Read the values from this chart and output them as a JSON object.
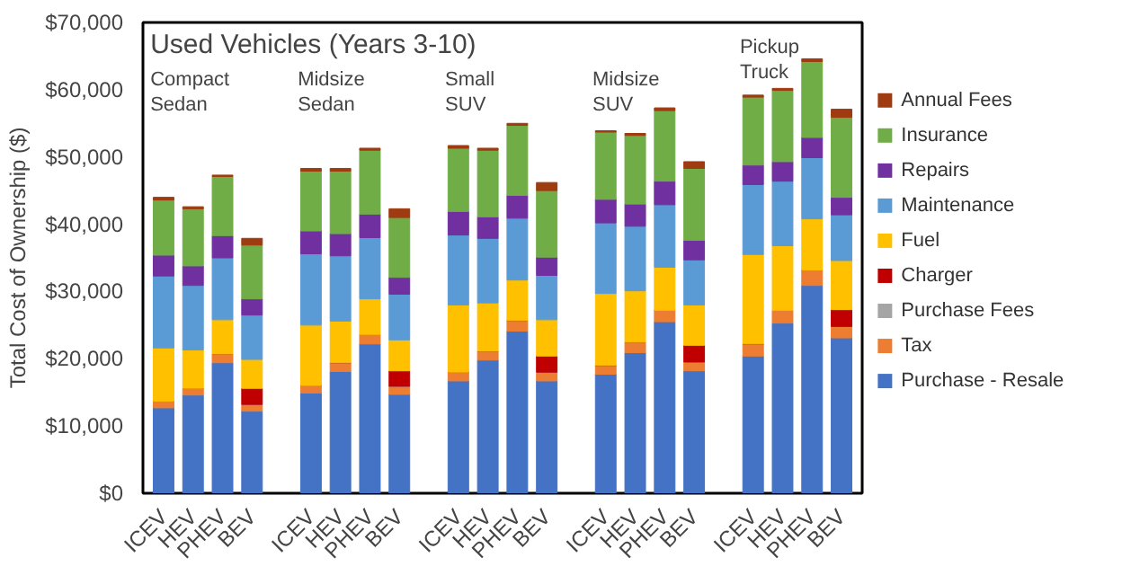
{
  "chart_data": {
    "type": "bar",
    "stacked": true,
    "title": "Used Vehicles (Years 3-10)",
    "ylabel": "Total Cost of Ownership ($)",
    "categories": [
      "ICEV",
      "HEV",
      "PHEV",
      "BEV",
      null,
      "ICEV",
      "HEV",
      "PHEV",
      "BEV",
      null,
      "ICEV",
      "HEV",
      "PHEV",
      "BEV",
      null,
      "ICEV",
      "HEV",
      "PHEV",
      "BEV",
      null,
      "ICEV",
      "HEV",
      "PHEV",
      "BEV"
    ],
    "annotations": [
      "Compact Sedan",
      "Midsize Sedan",
      "Small SUV",
      "Midsize SUV",
      "Pickup Truck"
    ],
    "ylim": [
      0,
      70000
    ],
    "yticks": [
      {
        "value": 0,
        "label": "$0"
      },
      {
        "value": 10000,
        "label": "$10,000"
      },
      {
        "value": 20000,
        "label": "$20,000"
      },
      {
        "value": 30000,
        "label": "$30,000"
      },
      {
        "value": 40000,
        "label": "$40,000"
      },
      {
        "value": 50000,
        "label": "$50,000"
      },
      {
        "value": 60000,
        "label": "$60,000"
      },
      {
        "value": 70000,
        "label": "$70,000"
      }
    ],
    "legend": "right",
    "series": [
      {
        "name": "Purchase - Resale",
        "color": "#4472c4",
        "values": [
          12700,
          14600,
          19400,
          12200,
          null,
          14900,
          18100,
          22200,
          14700,
          null,
          16700,
          19800,
          24100,
          16700,
          null,
          17700,
          20900,
          25500,
          18200,
          null,
          20400,
          25300,
          30900,
          23100
        ]
      },
      {
        "name": "Tax",
        "color": "#ed7d31",
        "values": [
          1000,
          1000,
          1300,
          1000,
          null,
          1100,
          1300,
          1400,
          1200,
          null,
          1300,
          1300,
          1600,
          1300,
          null,
          1300,
          1600,
          1700,
          1300,
          null,
          1800,
          1900,
          2300,
          1700
        ]
      },
      {
        "name": "Purchase Fees",
        "color": "#a5a5a5",
        "values": [
          0,
          0,
          0,
          0,
          null,
          0,
          0,
          0,
          0,
          null,
          0,
          0,
          0,
          0,
          null,
          0,
          0,
          0,
          0,
          null,
          0,
          0,
          0,
          0
        ]
      },
      {
        "name": "Charger",
        "color": "#c00000",
        "values": [
          0,
          0,
          0,
          2400,
          null,
          0,
          0,
          0,
          2300,
          null,
          0,
          0,
          0,
          2400,
          null,
          0,
          0,
          0,
          2500,
          null,
          0,
          0,
          0,
          2500
        ]
      },
      {
        "name": "Fuel",
        "color": "#ffc000",
        "values": [
          7900,
          5700,
          5100,
          4300,
          null,
          9000,
          6200,
          5300,
          4600,
          null,
          10000,
          7200,
          6000,
          5400,
          null,
          10700,
          7600,
          6400,
          6000,
          null,
          13300,
          9600,
          7600,
          7300
        ]
      },
      {
        "name": "Maintenance",
        "color": "#5b9bd5",
        "values": [
          10700,
          9600,
          9200,
          6600,
          null,
          10600,
          9700,
          9100,
          6800,
          null,
          10400,
          9600,
          9200,
          6600,
          null,
          10500,
          9600,
          9300,
          6700,
          null,
          10400,
          9600,
          9100,
          6800
        ]
      },
      {
        "name": "Repairs",
        "color": "#7030a0",
        "values": [
          3100,
          2900,
          3300,
          2400,
          null,
          3400,
          3300,
          3500,
          2500,
          null,
          3500,
          3200,
          3400,
          2700,
          null,
          3500,
          3300,
          3500,
          2900,
          null,
          2900,
          2900,
          3000,
          2600
        ]
      },
      {
        "name": "Insurance",
        "color": "#70ad47",
        "values": [
          8200,
          8500,
          8800,
          8000,
          null,
          8900,
          9300,
          9500,
          8900,
          null,
          9400,
          9900,
          10400,
          9900,
          null,
          10000,
          10200,
          10500,
          10700,
          null,
          10100,
          10600,
          11300,
          11900
        ]
      },
      {
        "name": "Annual Fees",
        "color": "#9e3b10",
        "values": [
          400,
          300,
          200,
          1000,
          null,
          400,
          400,
          300,
          1300,
          null,
          400,
          300,
          300,
          1200,
          null,
          200,
          300,
          400,
          1000,
          null,
          300,
          300,
          400,
          1200
        ]
      }
    ]
  }
}
